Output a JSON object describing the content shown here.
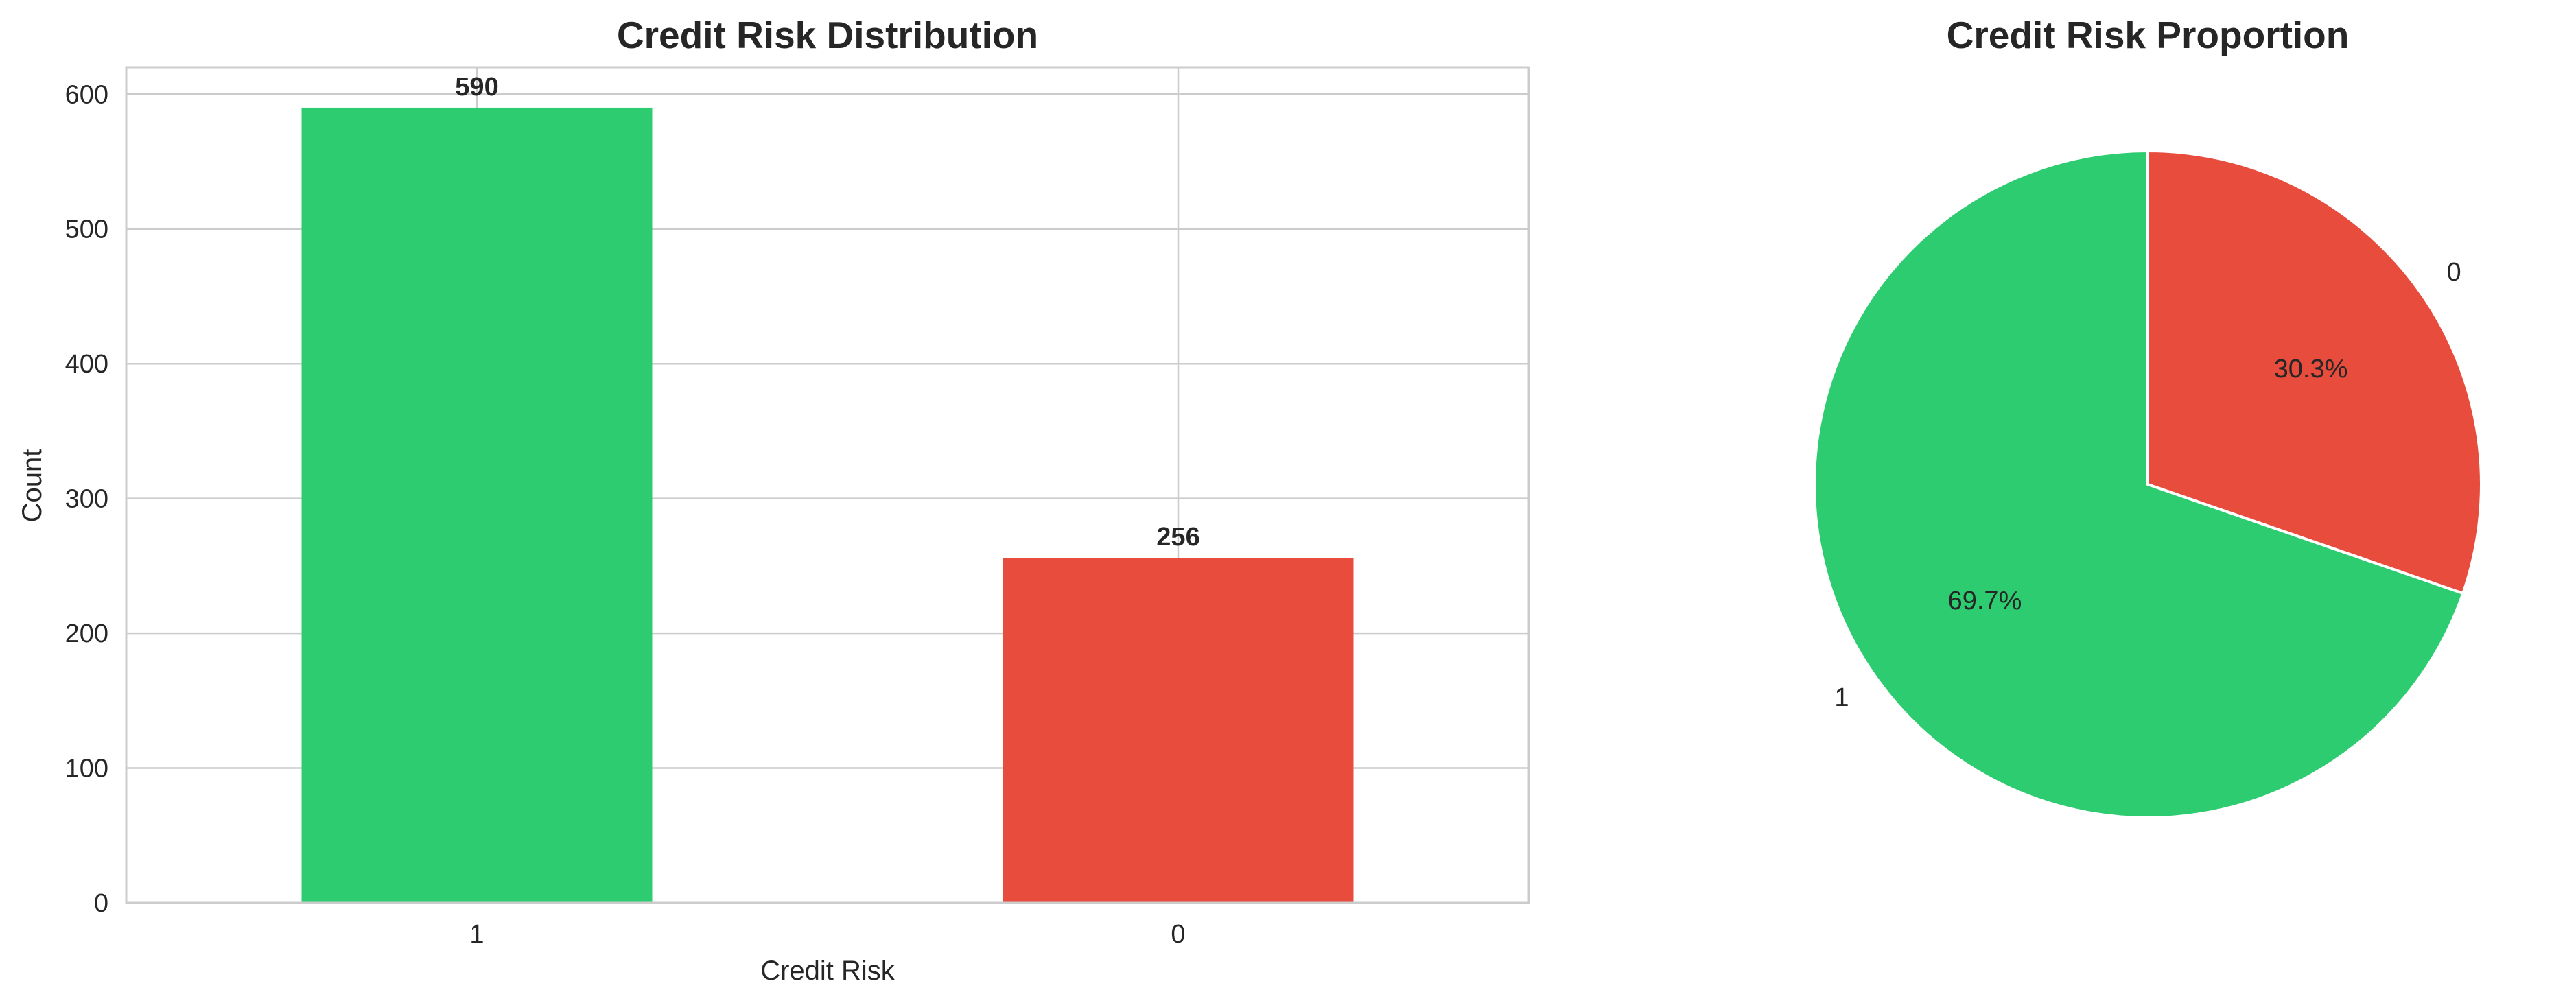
{
  "chart_data": [
    {
      "type": "bar",
      "title": "Credit Risk Distribution",
      "xlabel": "Credit Risk",
      "ylabel": "Count",
      "categories": [
        "1",
        "0"
      ],
      "values": [
        590,
        256
      ],
      "data_labels": [
        "590",
        "256"
      ],
      "colors": [
        "#2ecc71",
        "#e74c3c"
      ],
      "ylim": [
        0,
        620
      ],
      "yticks": [
        0,
        100,
        200,
        300,
        400,
        500,
        600
      ],
      "ytick_labels": [
        "0",
        "100",
        "200",
        "300",
        "400",
        "500",
        "600"
      ],
      "grid": true,
      "legend": "none"
    },
    {
      "type": "pie",
      "title": "Credit Risk Proportion",
      "labels": [
        "1",
        "0"
      ],
      "values": [
        69.7,
        30.3
      ],
      "pct_labels": [
        "69.7%",
        "30.3%"
      ],
      "colors": [
        "#2ecc71",
        "#e74c3c"
      ],
      "start_angle_deg": 90,
      "direction": "counterclockwise",
      "legend": "none"
    }
  ]
}
